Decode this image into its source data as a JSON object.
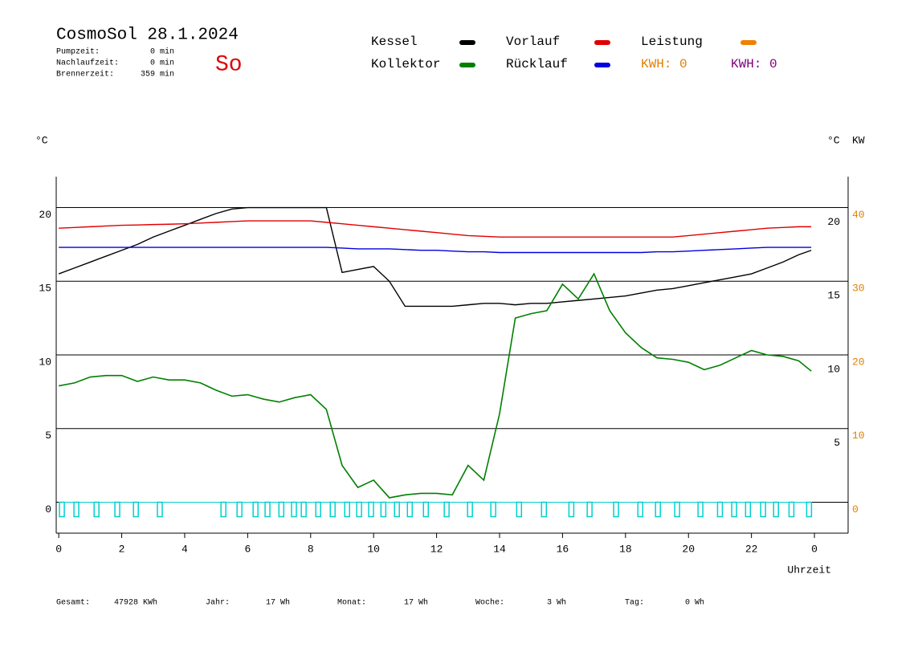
{
  "chart_data": {
    "type": "line",
    "title": "CosmoSol 28.1.2024",
    "day": "So",
    "ylabel": "°C",
    "y2label_c": "°C",
    "y2label": "KW",
    "xlabel": "Uhrzeit",
    "xlim": [
      -0.08,
      25.07
    ],
    "xticks": [
      0,
      2,
      4,
      6,
      8,
      10,
      12,
      14,
      16,
      18,
      20,
      22,
      {
        "value": 24,
        "label": "0"
      }
    ],
    "ylim": [
      -2.1,
      22.1
    ],
    "yticks": [
      0,
      5,
      10,
      15,
      20
    ],
    "right_yticks": [
      5,
      10,
      15,
      20
    ],
    "y2lim": [
      -4.2,
      44.2
    ],
    "y2ticks": [
      0,
      10,
      20,
      30,
      40
    ],
    "y2color": "#e08000",
    "grid": true,
    "x": [
      0,
      0.5,
      1,
      1.5,
      2,
      2.5,
      3,
      3.5,
      4,
      4.5,
      5,
      5.5,
      6,
      6.5,
      7,
      7.5,
      8,
      8.5,
      9,
      9.5,
      10,
      10.5,
      11,
      11.5,
      12,
      12.5,
      13,
      13.5,
      14,
      14.5,
      15,
      15.5,
      16,
      16.5,
      17,
      17.5,
      18,
      18.5,
      19,
      19.5,
      20,
      20.5,
      21,
      21.5,
      22,
      22.5,
      23,
      23.5,
      23.9
    ],
    "series": [
      {
        "name": "Kessel",
        "color": "#000000",
        "values": [
          15.5,
          15.9,
          16.3,
          16.7,
          17.1,
          17.5,
          18.0,
          18.4,
          18.8,
          19.2,
          19.6,
          19.9,
          20.0,
          20.0,
          20.0,
          20.0,
          20.0,
          20.0,
          15.6,
          15.8,
          16.0,
          15.0,
          13.3,
          13.3,
          13.3,
          13.3,
          13.4,
          13.5,
          13.5,
          13.4,
          13.5,
          13.5,
          13.6,
          13.7,
          13.8,
          13.9,
          14.0,
          14.2,
          14.4,
          14.5,
          14.7,
          14.9,
          15.1,
          15.3,
          15.5,
          15.9,
          16.3,
          16.8,
          17.1
        ]
      },
      {
        "name": "Vorlauf",
        "color": "#e00000",
        "values": [
          18.6,
          18.65,
          18.7,
          18.75,
          18.8,
          18.82,
          18.85,
          18.87,
          18.9,
          18.95,
          19.0,
          19.05,
          19.1,
          19.1,
          19.1,
          19.1,
          19.1,
          19.0,
          18.9,
          18.8,
          18.7,
          18.6,
          18.5,
          18.4,
          18.3,
          18.2,
          18.1,
          18.05,
          18.0,
          18.0,
          18.0,
          18.0,
          18.0,
          18.0,
          18.0,
          18.0,
          18.0,
          18.0,
          18.0,
          18.0,
          18.1,
          18.2,
          18.3,
          18.4,
          18.5,
          18.6,
          18.65,
          18.7,
          18.7
        ]
      },
      {
        "name": "Leistung",
        "color": "#f08000",
        "values": [
          null,
          null,
          null,
          null,
          null,
          null,
          null,
          null,
          null,
          null,
          null,
          null,
          null,
          null,
          null,
          null,
          null,
          null,
          null,
          null,
          null,
          null,
          null,
          null,
          null,
          null,
          null,
          null,
          null,
          null,
          null,
          null,
          null,
          null,
          null,
          null,
          null,
          null,
          null,
          null,
          null,
          null,
          null,
          null,
          null,
          null,
          null,
          null,
          null
        ]
      },
      {
        "name": "Kollektor",
        "color": "#008000",
        "values": [
          7.9,
          8.1,
          8.5,
          8.6,
          8.6,
          8.2,
          8.5,
          8.3,
          8.3,
          8.1,
          7.6,
          7.2,
          7.3,
          7.0,
          6.8,
          7.1,
          7.3,
          6.3,
          2.5,
          1.0,
          1.5,
          0.3,
          0.5,
          0.6,
          0.6,
          0.5,
          2.5,
          1.5,
          6.0,
          12.5,
          12.8,
          13.0,
          14.8,
          13.8,
          15.5,
          13.0,
          11.5,
          10.5,
          9.8,
          9.7,
          9.5,
          9.0,
          9.3,
          9.8,
          10.3,
          10.0,
          9.9,
          9.6,
          8.9
        ]
      },
      {
        "name": "Rücklauf",
        "color": "#0000e0",
        "values": [
          17.3,
          17.3,
          17.3,
          17.3,
          17.3,
          17.3,
          17.3,
          17.3,
          17.3,
          17.3,
          17.3,
          17.3,
          17.3,
          17.3,
          17.3,
          17.3,
          17.3,
          17.3,
          17.25,
          17.2,
          17.2,
          17.2,
          17.15,
          17.1,
          17.1,
          17.05,
          17.0,
          17.0,
          16.95,
          16.95,
          16.95,
          16.95,
          16.95,
          16.95,
          16.95,
          16.95,
          16.95,
          16.95,
          17.0,
          17.0,
          17.05,
          17.1,
          17.15,
          17.2,
          17.25,
          17.3,
          17.3,
          17.3,
          17.3
        ]
      }
    ],
    "pump": {
      "color": "#00d0d0",
      "x": [
        0.1,
        0.56,
        1.2,
        1.86,
        2.45,
        3.21,
        5.23,
        5.74,
        6.25,
        6.63,
        7.07,
        7.47,
        7.78,
        8.24,
        8.7,
        9.16,
        9.54,
        9.92,
        10.31,
        10.74,
        11.15,
        11.66,
        12.32,
        13.06,
        13.8,
        14.62,
        15.41,
        16.28,
        16.86,
        17.7,
        18.47,
        19.03,
        19.64,
        20.38,
        21.0,
        21.45,
        21.89,
        22.37,
        22.78,
        23.27,
        23.83
      ]
    }
  },
  "stats": [
    [
      "Pumpzeit:",
      "0 min"
    ],
    [
      "Nachlaufzeit:",
      "0 min"
    ],
    [
      "Brennerzeit:",
      "359 min"
    ]
  ],
  "kwh_labels": [
    {
      "text": "KWH: 0",
      "color": "#e08000"
    },
    {
      "text": "KWH: 0",
      "color": "#800080"
    }
  ],
  "totals": [
    [
      "Gesamt:",
      "47928 KWh"
    ],
    [
      "Jahr:",
      "17 Wh"
    ],
    [
      "Monat:",
      "17 Wh"
    ],
    [
      "Woche:",
      "3 Wh"
    ],
    [
      "Tag:",
      "0 Wh"
    ]
  ]
}
